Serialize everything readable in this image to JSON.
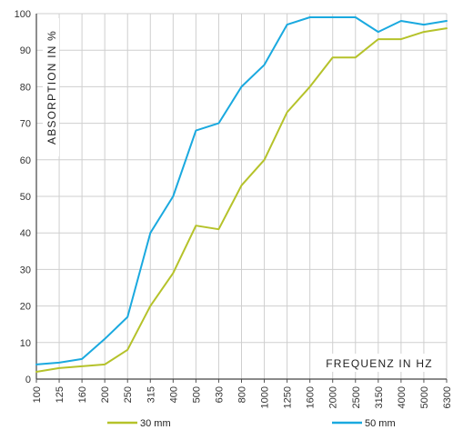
{
  "chart_data": {
    "type": "line",
    "title": "",
    "xlabel": "FREQUENZ IN HZ",
    "ylabel": "ABSORPTION IN %",
    "categories": [
      "100",
      "125",
      "160",
      "200",
      "250",
      "315",
      "400",
      "500",
      "630",
      "800",
      "1000",
      "1250",
      "1600",
      "2000",
      "2500",
      "3150",
      "4000",
      "5000",
      "6300"
    ],
    "yticks": [
      "0",
      "10",
      "20",
      "30",
      "40",
      "50",
      "60",
      "70",
      "80",
      "90",
      "100"
    ],
    "ylim": [
      0,
      100
    ],
    "grid": true,
    "legend_position": "bottom",
    "series": [
      {
        "name": "30 mm",
        "color": "#b5c22a",
        "values": [
          2,
          3,
          3.5,
          4,
          8,
          20,
          29,
          42,
          41,
          53,
          60,
          73,
          80,
          88,
          88,
          93,
          93,
          95,
          96
        ]
      },
      {
        "name": "50 mm",
        "color": "#1aa9df",
        "values": [
          4,
          4.5,
          5.5,
          11,
          17,
          40,
          50,
          68,
          70,
          80,
          86,
          97,
          99,
          99,
          99,
          95,
          98,
          97,
          98
        ]
      }
    ]
  }
}
